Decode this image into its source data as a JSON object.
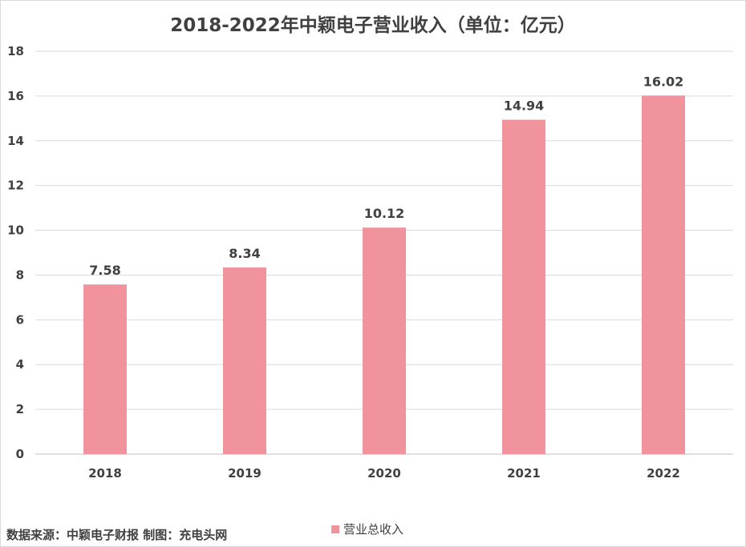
{
  "chart_data": {
    "type": "bar",
    "title": "2018-2022年中颖电子营业收入（单位：亿元）",
    "categories": [
      "2018",
      "2019",
      "2020",
      "2021",
      "2022"
    ],
    "series": [
      {
        "name": "营业总收入",
        "values": [
          7.58,
          8.34,
          10.12,
          14.94,
          16.02
        ],
        "data_labels": [
          "7.58",
          "8.34",
          "10.12",
          "14.94",
          "16.02"
        ],
        "color": "#f0939d"
      }
    ],
    "ylim": [
      0,
      18
    ],
    "yticks": [
      0,
      2,
      4,
      6,
      8,
      10,
      12,
      14,
      16,
      18
    ],
    "grid": true,
    "legend_position": "bottom"
  },
  "source_note": "数据来源：中颖电子财报 制图：充电头网"
}
